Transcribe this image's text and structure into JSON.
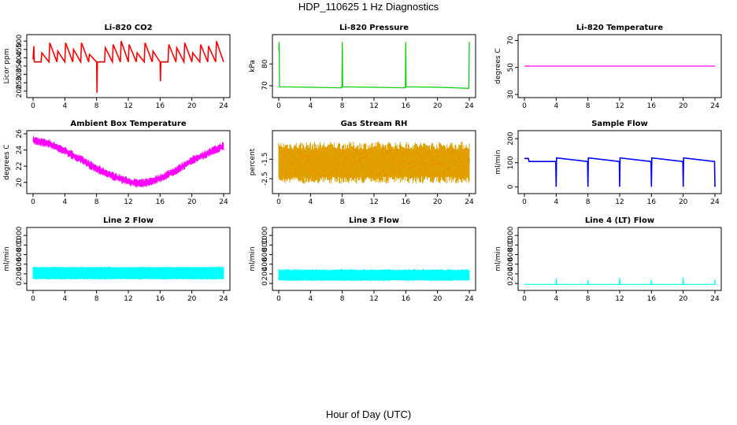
{
  "figure": {
    "title": "HDP_110625  1 Hz Diagnostics",
    "xlabel": "Hour of Day (UTC)"
  },
  "chart_data": [
    {
      "id": "co2",
      "type": "line",
      "title": "Li-820 CO2",
      "ylabel": "Licor ppm",
      "color": "#ff0000",
      "xlim": [
        0,
        24
      ],
      "ylim": [
        180,
        520
      ],
      "xticks": [
        0,
        4,
        8,
        12,
        16,
        20,
        24
      ],
      "yticks": [
        200,
        250,
        300,
        350,
        400,
        450,
        500
      ],
      "series": [
        {
          "name": "CO2",
          "x": [
            0,
            0.1,
            0.15,
            0.2,
            1,
            1.1,
            2,
            2.1,
            3,
            3.1,
            4,
            4.1,
            5,
            5.1,
            6,
            6.1,
            7,
            7.1,
            8,
            8.05,
            8.1,
            9,
            9.1,
            10,
            10.1,
            11,
            11.1,
            12,
            12.1,
            13,
            13.1,
            14,
            14.1,
            15,
            15.1,
            16,
            16.05,
            16.1,
            17,
            17.1,
            18,
            18.1,
            19,
            19.1,
            20,
            20.1,
            21,
            21.1,
            22,
            22.1,
            23,
            23.1,
            24
          ],
          "y": [
            390,
            470,
            380,
            375,
            375,
            430,
            375,
            490,
            375,
            440,
            375,
            490,
            375,
            450,
            375,
            490,
            375,
            420,
            375,
            190,
            375,
            375,
            460,
            375,
            480,
            375,
            500,
            375,
            480,
            375,
            430,
            375,
            490,
            375,
            440,
            375,
            260,
            375,
            375,
            480,
            375,
            460,
            375,
            490,
            375,
            430,
            375,
            480,
            375,
            470,
            375,
            500,
            375
          ]
        }
      ]
    },
    {
      "id": "pressure",
      "type": "line",
      "title": "Li-820 Pressure",
      "ylabel": "kPa",
      "color": "#00cc00",
      "xlim": [
        0,
        24
      ],
      "ylim": [
        66,
        92
      ],
      "xticks": [
        0,
        4,
        8,
        12,
        16,
        20,
        24
      ],
      "yticks": [
        70,
        80
      ],
      "series": [
        {
          "name": "Pressure",
          "x": [
            0,
            0.05,
            0.1,
            4,
            7.95,
            8,
            8.05,
            12,
            15.95,
            16,
            16.05,
            20,
            23.95,
            24
          ],
          "y": [
            86,
            90,
            69.5,
            69.3,
            69.0,
            90,
            69.5,
            69.3,
            69.0,
            90,
            69.5,
            69.3,
            68.8,
            90
          ]
        }
      ]
    },
    {
      "id": "temp",
      "type": "line",
      "title": "Li-820 Temperature",
      "ylabel": "degrees C",
      "color": "#ff00ff",
      "xlim": [
        0,
        24
      ],
      "ylim": [
        30,
        72
      ],
      "xticks": [
        0,
        4,
        8,
        12,
        16,
        20,
        24
      ],
      "yticks": [
        30,
        50,
        70
      ],
      "series": [
        {
          "name": "Temperature",
          "x": [
            0,
            24
          ],
          "y": [
            51,
            51
          ]
        }
      ]
    },
    {
      "id": "ambient",
      "type": "line",
      "title": "Ambient Box Temperature",
      "ylabel": "degrees C",
      "color": "#ff00ff",
      "xlim": [
        0,
        24
      ],
      "ylim": [
        19,
        26
      ],
      "xticks": [
        0,
        4,
        8,
        12,
        16,
        20,
        24
      ],
      "yticks": [
        20,
        22,
        24,
        26
      ],
      "series": [
        {
          "name": "Ambient",
          "x": [
            0,
            2,
            4,
            6,
            8,
            10,
            12,
            13,
            14,
            16,
            18,
            20,
            22,
            24
          ],
          "y": [
            25.2,
            24.8,
            23.9,
            22.8,
            21.7,
            20.8,
            20.1,
            19.9,
            19.9,
            20.5,
            21.5,
            22.7,
            23.6,
            24.5
          ]
        }
      ],
      "noise": 0.55
    },
    {
      "id": "rh",
      "type": "band",
      "title": "Gas Stream RH",
      "ylabel": "percent",
      "color": "#e0a000",
      "xlim": [
        0,
        24
      ],
      "ylim": [
        -3.1,
        -0.2
      ],
      "xticks": [
        0,
        4,
        8,
        12,
        16,
        20,
        24
      ],
      "yticks": [
        -2.5,
        -1.5
      ],
      "band": {
        "low": -2.4,
        "high": -1.0,
        "spike_low": -2.75,
        "spike_high": -0.6
      }
    },
    {
      "id": "sample",
      "type": "line",
      "title": "Sample Flow",
      "ylabel": "ml/min",
      "color": "#0000ff",
      "xlim": [
        0,
        24
      ],
      "ylim": [
        -15,
        220
      ],
      "xticks": [
        0,
        4,
        8,
        12,
        16,
        20,
        24
      ],
      "yticks": [
        0,
        100,
        200
      ],
      "series": [
        {
          "name": "Sample",
          "x": [
            0,
            0.5,
            0.6,
            3.95,
            4,
            4.05,
            7.95,
            8,
            8.05,
            11.95,
            12,
            12.05,
            15.95,
            16,
            16.05,
            19.95,
            20,
            20.05,
            23.95,
            24
          ],
          "y": [
            118,
            118,
            105,
            105,
            0,
            120,
            105,
            0,
            120,
            105,
            0,
            120,
            105,
            0,
            120,
            105,
            0,
            120,
            105,
            0
          ]
        }
      ]
    },
    {
      "id": "line2",
      "type": "band",
      "title": "Line 2 Flow",
      "ylabel": "ml/min",
      "color": "#00ffff",
      "xlim": [
        0,
        24
      ],
      "ylim": [
        -80,
        1100
      ],
      "xticks": [
        0,
        4,
        8,
        12,
        16,
        20,
        24
      ],
      "yticks": [
        0,
        200,
        400,
        600,
        800,
        1000
      ],
      "band": {
        "low": 100,
        "high": 330,
        "spike_low": 80,
        "spike_high": 350
      }
    },
    {
      "id": "line3",
      "type": "band",
      "title": "Line 3 Flow",
      "ylabel": "ml/min",
      "color": "#00ffff",
      "xlim": [
        0,
        24
      ],
      "ylim": [
        -80,
        1100
      ],
      "xticks": [
        0,
        4,
        8,
        12,
        16,
        20,
        24
      ],
      "yticks": [
        0,
        200,
        400,
        600,
        800,
        1000
      ],
      "band": {
        "low": 70,
        "high": 270,
        "spike_low": 50,
        "spike_high": 300
      }
    },
    {
      "id": "line4",
      "type": "line",
      "title": "Line 4 (LT) Flow",
      "ylabel": "ml/min",
      "color": "#00ffff",
      "xlim": [
        0,
        24
      ],
      "ylim": [
        -80,
        1100
      ],
      "xticks": [
        0,
        4,
        8,
        12,
        16,
        20,
        24
      ],
      "yticks": [
        0,
        200,
        400,
        600,
        800,
        1000
      ],
      "series": [
        {
          "name": "Line4",
          "x": [
            0,
            3.95,
            4,
            4.05,
            7.95,
            8,
            8.05,
            11.95,
            12,
            12.05,
            15.95,
            16,
            16.05,
            19.95,
            20,
            20.05,
            23.95,
            24,
            24
          ],
          "y": [
            -20,
            -20,
            100,
            -20,
            -20,
            70,
            -20,
            -20,
            110,
            -20,
            -20,
            70,
            -20,
            -20,
            120,
            -20,
            -20,
            80,
            -20
          ]
        }
      ]
    }
  ]
}
